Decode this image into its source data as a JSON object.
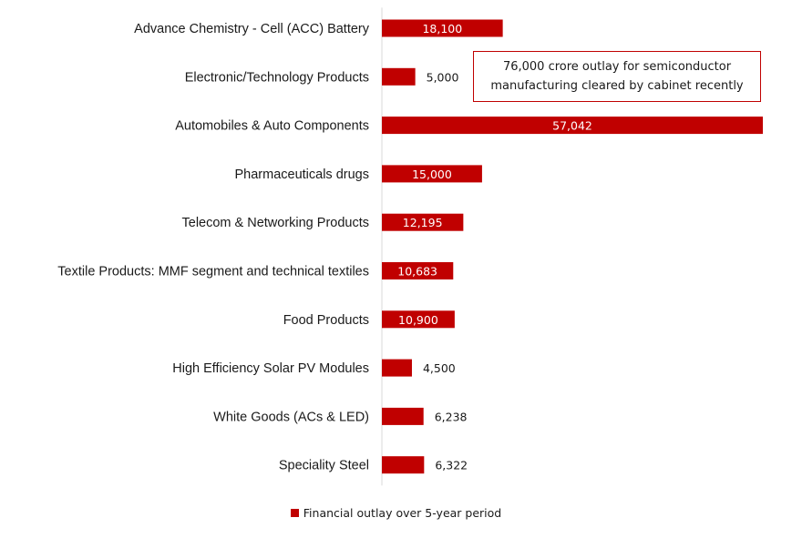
{
  "chart_data": {
    "type": "bar",
    "orientation": "horizontal",
    "categories": [
      "Advance Chemistry - Cell (ACC) Battery",
      "Electronic/Technology Products",
      "Automobiles & Auto Components",
      "Pharmaceuticals drugs",
      "Telecom & Networking Products",
      "Textile Products: MMF segment and technical textiles",
      "Food Products",
      "High Efficiency Solar PV Modules",
      "White Goods (ACs & LED)",
      "Speciality Steel"
    ],
    "series": [
      {
        "name": "Financial outlay over 5-year period",
        "values": [
          18100,
          5000,
          57042,
          15000,
          12195,
          10683,
          10900,
          4500,
          6238,
          6322
        ],
        "value_labels": [
          "18,100",
          "5,000",
          "57,042",
          "15,000",
          "12,195",
          "10,683",
          "10,900",
          "4,500",
          "6,238",
          "6,322"
        ],
        "color": "#c00000"
      }
    ],
    "xlim": [
      0,
      57042
    ],
    "grid": false,
    "legend": "bottom-center",
    "annotation": "76,000 crore outlay for semiconductor manufacturing cleared by cabinet recently"
  }
}
